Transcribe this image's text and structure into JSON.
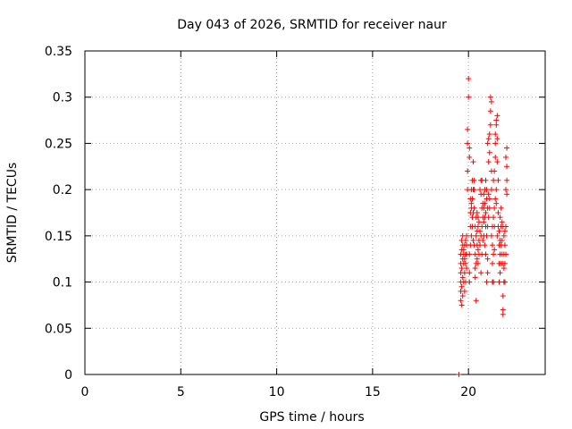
{
  "chart_data": {
    "type": "scatter",
    "title": "Day 043 of 2026, SRMTID for receiver naur",
    "xlabel": "GPS time / hours",
    "ylabel": "SRMTID / TECUs",
    "xlim": [
      0,
      24
    ],
    "ylim": [
      0,
      0.35
    ],
    "xticks": [
      0,
      5,
      10,
      15,
      20
    ],
    "xtick_labels": [
      "0",
      "5",
      "10",
      "15",
      "20"
    ],
    "yticks": [
      0,
      0.05,
      0.1,
      0.15,
      0.2,
      0.25,
      0.3,
      0.35
    ],
    "ytick_labels": [
      "0",
      "0.05",
      "0.1",
      "0.15",
      "0.2",
      "0.25",
      "0.3",
      "0.35"
    ],
    "grid": true,
    "marker": "+",
    "series": [
      {
        "name": "SRMTID",
        "color": "#ff0000",
        "points": [
          [
            19.5,
            0.0
          ],
          [
            19.6,
            0.08
          ],
          [
            19.6,
            0.09
          ],
          [
            19.6,
            0.1
          ],
          [
            19.6,
            0.11
          ],
          [
            19.6,
            0.12
          ],
          [
            19.6,
            0.13
          ],
          [
            19.65,
            0.075
          ],
          [
            19.65,
            0.095
          ],
          [
            19.65,
            0.115
          ],
          [
            19.65,
            0.135
          ],
          [
            19.65,
            0.145
          ],
          [
            19.7,
            0.085
          ],
          [
            19.7,
            0.105
          ],
          [
            19.7,
            0.125
          ],
          [
            19.7,
            0.14
          ],
          [
            19.7,
            0.15
          ],
          [
            19.75,
            0.1
          ],
          [
            19.75,
            0.12
          ],
          [
            19.75,
            0.13
          ],
          [
            19.75,
            0.135
          ],
          [
            19.8,
            0.09
          ],
          [
            19.8,
            0.11
          ],
          [
            19.8,
            0.125
          ],
          [
            19.8,
            0.14
          ],
          [
            19.85,
            0.1
          ],
          [
            19.85,
            0.12
          ],
          [
            19.85,
            0.13
          ],
          [
            19.85,
            0.145
          ],
          [
            19.9,
            0.115
          ],
          [
            19.9,
            0.13
          ],
          [
            19.9,
            0.14
          ],
          [
            19.9,
            0.15
          ],
          [
            19.95,
            0.2
          ],
          [
            19.95,
            0.22
          ],
          [
            19.95,
            0.25
          ],
          [
            19.95,
            0.265
          ],
          [
            20.0,
            0.3
          ],
          [
            20.0,
            0.32
          ],
          [
            20.05,
            0.235
          ],
          [
            20.05,
            0.245
          ],
          [
            20.05,
            0.13
          ],
          [
            20.05,
            0.11
          ],
          [
            20.05,
            0.1
          ],
          [
            20.1,
            0.14
          ],
          [
            20.1,
            0.16
          ],
          [
            20.1,
            0.175
          ],
          [
            20.1,
            0.19
          ],
          [
            20.15,
            0.15
          ],
          [
            20.15,
            0.18
          ],
          [
            20.15,
            0.2
          ],
          [
            20.15,
            0.185
          ],
          [
            20.2,
            0.16
          ],
          [
            20.2,
            0.17
          ],
          [
            20.2,
            0.19
          ],
          [
            20.2,
            0.21
          ],
          [
            20.25,
            0.145
          ],
          [
            20.25,
            0.175
          ],
          [
            20.25,
            0.2
          ],
          [
            20.25,
            0.23
          ],
          [
            20.3,
            0.14
          ],
          [
            20.3,
            0.18
          ],
          [
            20.3,
            0.2
          ],
          [
            20.3,
            0.21
          ],
          [
            20.35,
            0.105
          ],
          [
            20.35,
            0.115
          ],
          [
            20.35,
            0.13
          ],
          [
            20.35,
            0.16
          ],
          [
            20.4,
            0.08
          ],
          [
            20.4,
            0.12
          ],
          [
            20.4,
            0.15
          ],
          [
            20.4,
            0.17
          ],
          [
            20.45,
            0.125
          ],
          [
            20.45,
            0.14
          ],
          [
            20.45,
            0.155
          ],
          [
            20.45,
            0.175
          ],
          [
            20.5,
            0.12
          ],
          [
            20.5,
            0.135
          ],
          [
            20.5,
            0.16
          ],
          [
            20.5,
            0.17
          ],
          [
            20.55,
            0.13
          ],
          [
            20.55,
            0.145
          ],
          [
            20.55,
            0.165
          ],
          [
            20.6,
            0.14
          ],
          [
            20.6,
            0.155
          ],
          [
            20.6,
            0.2
          ],
          [
            20.65,
            0.11
          ],
          [
            20.65,
            0.15
          ],
          [
            20.65,
            0.195
          ],
          [
            20.65,
            0.21
          ],
          [
            20.7,
            0.13
          ],
          [
            20.7,
            0.16
          ],
          [
            20.7,
            0.18
          ],
          [
            20.7,
            0.21
          ],
          [
            20.75,
            0.145
          ],
          [
            20.75,
            0.17
          ],
          [
            20.75,
            0.185
          ],
          [
            20.8,
            0.15
          ],
          [
            20.8,
            0.165
          ],
          [
            20.8,
            0.18
          ],
          [
            20.8,
            0.195
          ],
          [
            20.85,
            0.14
          ],
          [
            20.85,
            0.17
          ],
          [
            20.85,
            0.185
          ],
          [
            20.85,
            0.2
          ],
          [
            20.9,
            0.13
          ],
          [
            20.9,
            0.16
          ],
          [
            20.9,
            0.175
          ],
          [
            20.9,
            0.21
          ],
          [
            20.95,
            0.1
          ],
          [
            20.95,
            0.15
          ],
          [
            20.95,
            0.19
          ],
          [
            20.95,
            0.2
          ],
          [
            21.0,
            0.11
          ],
          [
            21.0,
            0.125
          ],
          [
            21.0,
            0.16
          ],
          [
            21.0,
            0.18
          ],
          [
            21.0,
            0.25
          ],
          [
            21.05,
            0.23
          ],
          [
            21.05,
            0.255
          ],
          [
            21.05,
            0.195
          ],
          [
            21.05,
            0.17
          ],
          [
            21.1,
            0.24
          ],
          [
            21.1,
            0.26
          ],
          [
            21.1,
            0.19
          ],
          [
            21.1,
            0.18
          ],
          [
            21.15,
            0.27
          ],
          [
            21.15,
            0.285
          ],
          [
            21.15,
            0.3
          ],
          [
            21.2,
            0.295
          ],
          [
            21.2,
            0.22
          ],
          [
            21.2,
            0.2
          ],
          [
            21.2,
            0.15
          ],
          [
            21.25,
            0.1
          ],
          [
            21.25,
            0.12
          ],
          [
            21.25,
            0.14
          ],
          [
            21.25,
            0.16
          ],
          [
            21.3,
            0.1
          ],
          [
            21.3,
            0.13
          ],
          [
            21.3,
            0.17
          ],
          [
            21.3,
            0.21
          ],
          [
            21.35,
            0.135
          ],
          [
            21.35,
            0.16
          ],
          [
            21.35,
            0.18
          ],
          [
            21.35,
            0.22
          ],
          [
            21.4,
            0.26
          ],
          [
            21.4,
            0.25
          ],
          [
            21.4,
            0.235
          ],
          [
            21.4,
            0.19
          ],
          [
            21.45,
            0.275
          ],
          [
            21.45,
            0.27
          ],
          [
            21.45,
            0.2
          ],
          [
            21.45,
            0.185
          ],
          [
            21.5,
            0.28
          ],
          [
            21.5,
            0.255
          ],
          [
            21.5,
            0.23
          ],
          [
            21.5,
            0.15
          ],
          [
            21.55,
            0.16
          ],
          [
            21.55,
            0.175
          ],
          [
            21.55,
            0.21
          ],
          [
            21.6,
            0.1
          ],
          [
            21.6,
            0.12
          ],
          [
            21.6,
            0.14
          ],
          [
            21.6,
            0.155
          ],
          [
            21.65,
            0.11
          ],
          [
            21.65,
            0.13
          ],
          [
            21.65,
            0.145
          ],
          [
            21.65,
            0.17
          ],
          [
            21.7,
            0.12
          ],
          [
            21.7,
            0.14
          ],
          [
            21.7,
            0.16
          ],
          [
            21.7,
            0.18
          ],
          [
            21.75,
            0.13
          ],
          [
            21.75,
            0.145
          ],
          [
            21.75,
            0.165
          ],
          [
            21.8,
            0.07
          ],
          [
            21.8,
            0.065
          ],
          [
            21.8,
            0.085
          ],
          [
            21.8,
            0.12
          ],
          [
            21.8,
            0.16
          ],
          [
            21.85,
            0.1
          ],
          [
            21.85,
            0.115
          ],
          [
            21.85,
            0.13
          ],
          [
            21.85,
            0.15
          ],
          [
            21.9,
            0.1
          ],
          [
            21.9,
            0.12
          ],
          [
            21.9,
            0.14
          ],
          [
            21.9,
            0.155
          ],
          [
            21.95,
            0.13
          ],
          [
            21.95,
            0.16
          ],
          [
            21.95,
            0.2
          ],
          [
            21.95,
            0.235
          ],
          [
            22.0,
            0.195
          ],
          [
            22.0,
            0.21
          ],
          [
            22.0,
            0.225
          ],
          [
            22.0,
            0.245
          ]
        ]
      }
    ]
  }
}
